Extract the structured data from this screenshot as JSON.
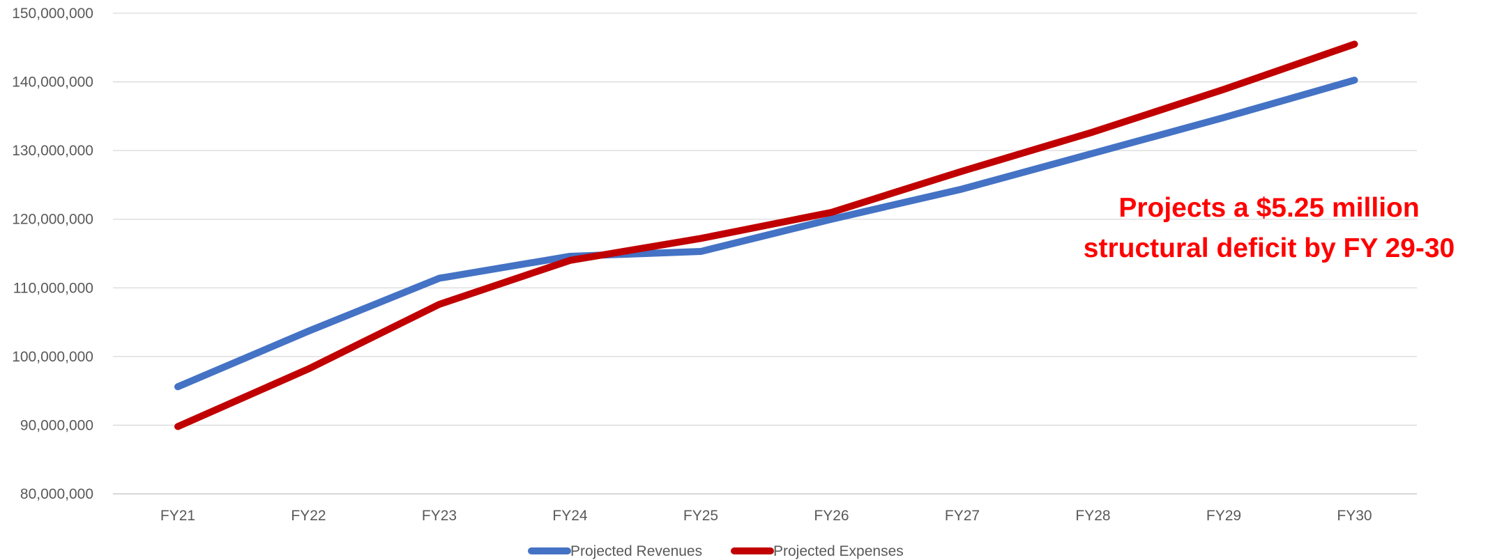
{
  "chart_data": {
    "type": "line",
    "title": "",
    "xlabel": "",
    "ylabel": "",
    "categories": [
      "FY21",
      "FY22",
      "FY23",
      "FY24",
      "FY25",
      "FY26",
      "FY27",
      "FY28",
      "FY29",
      "FY30"
    ],
    "ylim": [
      80000000,
      150000000
    ],
    "yticks": [
      80000000,
      90000000,
      100000000,
      110000000,
      120000000,
      130000000,
      140000000,
      150000000
    ],
    "ytick_labels": [
      "80,000,000",
      "90,000,000",
      "100,000,000",
      "110,000,000",
      "120,000,000",
      "130,000,000",
      "140,000,000",
      "150,000,000"
    ],
    "grid": true,
    "legend_position": "bottom",
    "series": [
      {
        "name": "Projected Revenues",
        "color": "#4472C4",
        "values": [
          95600000,
          103700000,
          111400000,
          114600000,
          115300000,
          120000000,
          124400000,
          129600000,
          134800000,
          140250000
        ]
      },
      {
        "name": "Projected Expenses",
        "color": "#C00000",
        "values": [
          89800000,
          98200000,
          107600000,
          114000000,
          117200000,
          121000000,
          127000000,
          132700000,
          138900000,
          145500000
        ]
      }
    ],
    "annotations": [
      {
        "lines": [
          "Projects a $5.25 million",
          "structural deficit by FY 29-30"
        ],
        "color": "#FF0000"
      }
    ]
  }
}
